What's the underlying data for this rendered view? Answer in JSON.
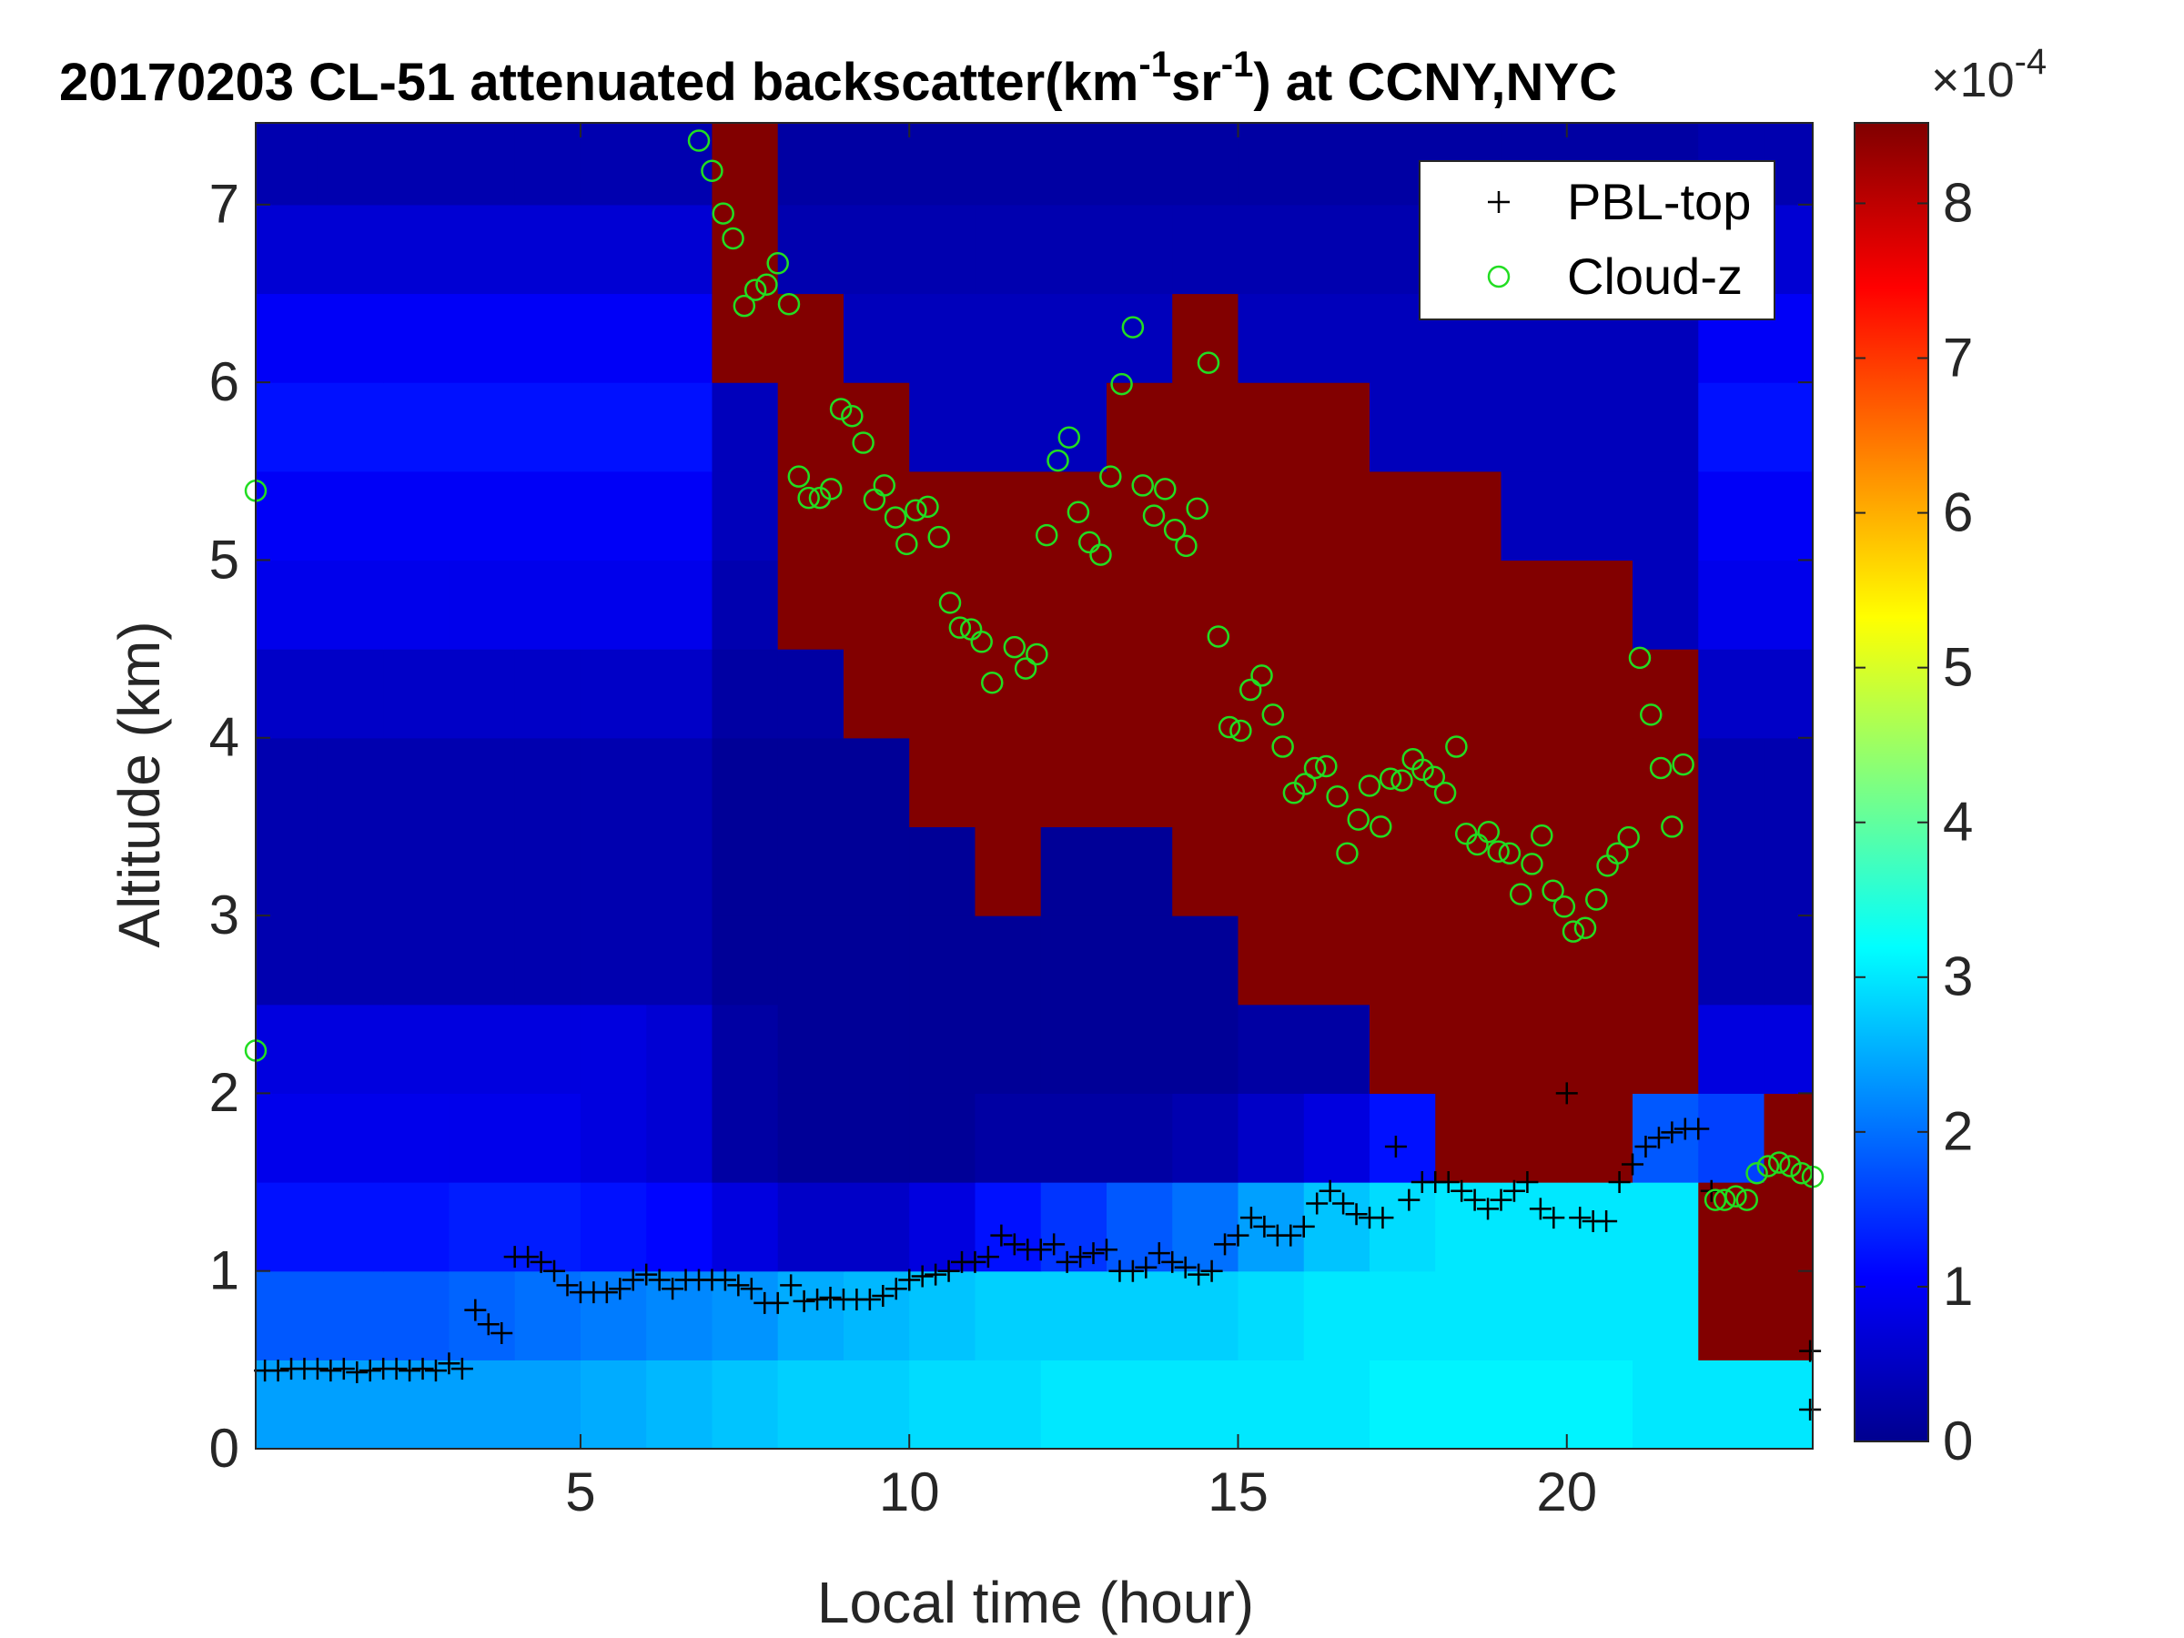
{
  "chart_data": {
    "type": "heatmap",
    "title_parts": [
      "20170203  CL-51 attenuated backscatter(km",
      "-1",
      "sr",
      "-1",
      ") at CCNY,NYC"
    ],
    "xlabel": "Local time (hour)",
    "ylabel": "Altitude (km)",
    "colorbar_label": "×10",
    "colorbar_exponent": "-4",
    "colormap": "jet",
    "clim": [
      0,
      8.52
    ],
    "cticks": [
      0,
      1,
      2,
      3,
      4,
      5,
      6,
      7,
      8
    ],
    "xlim": [
      0.06,
      23.74
    ],
    "ylim": [
      0,
      7.46
    ],
    "xticks": [
      5,
      10,
      15,
      20
    ],
    "yticks": [
      0,
      1,
      2,
      3,
      4,
      5,
      6,
      7
    ],
    "legend": "upper right",
    "xbins": [
      0.06,
      1,
      2,
      3,
      4,
      5,
      6,
      7,
      8,
      9,
      10,
      11,
      12,
      13,
      14,
      15,
      16,
      17,
      18,
      19,
      20,
      21,
      22,
      23,
      23.74
    ],
    "ybins": [
      0,
      0.5,
      1,
      1.5,
      2,
      2.5,
      3,
      3.5,
      4,
      4.5,
      5,
      5.5,
      6,
      6.5,
      7,
      7.46
    ],
    "z": [
      [
        2.4,
        2.4,
        2.4,
        2.4,
        2.4,
        2.5,
        2.6,
        2.7,
        2.8,
        2.8,
        2.9,
        2.9,
        3,
        3,
        3,
        3,
        3,
        3.1,
        3.1,
        3.1,
        3.1,
        3,
        3,
        3
      ],
      [
        1.8,
        1.8,
        1.8,
        1.9,
        2,
        2.1,
        2.2,
        2.3,
        2.5,
        2.6,
        2.7,
        2.8,
        2.8,
        2.8,
        2.8,
        2.9,
        3,
        3,
        3,
        3,
        3,
        3,
        8.5,
        8.5
      ],
      [
        1.2,
        1.2,
        1.2,
        1.3,
        1.3,
        1.2,
        1.1,
        0.8,
        0.6,
        0.6,
        0.8,
        1.2,
        1.5,
        1.8,
        2,
        2.4,
        2.7,
        2.9,
        3,
        3,
        3,
        3,
        8.5,
        8.5
      ],
      [
        0.9,
        0.9,
        0.9,
        0.9,
        0.9,
        0.8,
        0.7,
        0.3,
        0.2,
        0.2,
        0.2,
        0.3,
        0.3,
        0.3,
        0.4,
        0.6,
        0.8,
        1.2,
        8.5,
        8.5,
        8.5,
        1.8,
        1.6,
        8.5
      ],
      [
        0.8,
        0.8,
        0.8,
        0.8,
        0.8,
        0.8,
        0.7,
        0.3,
        0.2,
        0.2,
        0.2,
        0.2,
        0.2,
        0.2,
        0.2,
        0.3,
        0.3,
        8.5,
        8.5,
        8.5,
        8.5,
        8.5,
        0.8,
        0.8
      ],
      [
        0.4,
        0.4,
        0.4,
        0.4,
        0.4,
        0.4,
        0.4,
        0.2,
        0.2,
        0.2,
        0.2,
        0.2,
        0.2,
        0.2,
        0.2,
        8.5,
        8.5,
        8.5,
        8.5,
        8.5,
        8.5,
        8.5,
        0.4,
        0.4
      ],
      [
        0.4,
        0.4,
        0.4,
        0.4,
        0.4,
        0.4,
        0.4,
        0.2,
        0.2,
        0.2,
        0.2,
        8.5,
        0.2,
        0.2,
        8.5,
        8.5,
        8.5,
        8.5,
        8.5,
        8.5,
        8.5,
        8.5,
        0.4,
        0.4
      ],
      [
        0.4,
        0.4,
        0.4,
        0.4,
        0.4,
        0.4,
        0.4,
        0.2,
        0.2,
        0.2,
        8.5,
        8.5,
        8.5,
        8.5,
        8.5,
        8.5,
        8.5,
        8.5,
        8.5,
        8.5,
        8.5,
        8.5,
        0.4,
        0.4
      ],
      [
        0.6,
        0.6,
        0.6,
        0.6,
        0.6,
        0.6,
        0.6,
        0.3,
        0.3,
        8.5,
        8.5,
        8.5,
        8.5,
        8.5,
        8.5,
        8.5,
        8.5,
        8.5,
        8.5,
        8.5,
        8.5,
        8.5,
        0.6,
        0.6
      ],
      [
        0.9,
        0.9,
        0.9,
        0.9,
        0.9,
        0.9,
        0.9,
        0.4,
        8.5,
        8.5,
        8.5,
        8.5,
        8.5,
        8.5,
        8.5,
        8.5,
        8.5,
        8.5,
        8.5,
        8.5,
        8.5,
        0.5,
        0.9,
        0.9
      ],
      [
        1,
        1,
        1,
        1,
        1,
        1,
        1,
        0.5,
        8.5,
        8.5,
        8.5,
        8.5,
        8.5,
        8.5,
        8.5,
        8.5,
        8.5,
        8.5,
        8.5,
        0.5,
        0.5,
        0.5,
        1,
        1
      ],
      [
        1.2,
        1.2,
        1.2,
        1.2,
        1.2,
        1.2,
        1.2,
        0.5,
        8.5,
        8.5,
        0.5,
        0.5,
        0.5,
        8.5,
        8.5,
        8.5,
        8.5,
        0.5,
        0.5,
        0.5,
        0.5,
        0.5,
        1.2,
        1.2
      ],
      [
        1,
        1,
        1,
        1,
        1,
        1,
        1,
        8.5,
        8.5,
        0.5,
        0.5,
        0.5,
        0.5,
        0.5,
        8.5,
        0.5,
        0.5,
        0.5,
        0.5,
        0.5,
        0.5,
        0.5,
        1,
        1
      ],
      [
        0.7,
        0.7,
        0.7,
        0.7,
        0.7,
        0.7,
        0.7,
        8.5,
        0.4,
        0.4,
        0.4,
        0.4,
        0.4,
        0.4,
        0.4,
        0.4,
        0.4,
        0.4,
        0.4,
        0.4,
        0.4,
        0.4,
        0.7,
        0.7
      ],
      [
        0.4,
        0.4,
        0.4,
        0.4,
        0.4,
        0.4,
        0.4,
        8.5,
        0.3,
        0.3,
        0.3,
        0.3,
        0.3,
        0.3,
        0.3,
        0.3,
        0.3,
        0.3,
        0.3,
        0.3,
        0.3,
        0.3,
        0.4,
        0.4
      ]
    ],
    "series": [
      {
        "name": "PBL-top",
        "marker": "plus",
        "color": "#000000",
        "x": [
          0.2,
          0.4,
          0.6,
          0.8,
          1.0,
          1.2,
          1.4,
          1.6,
          1.8,
          2.0,
          2.2,
          2.4,
          2.6,
          2.8,
          3.0,
          3.2,
          3.4,
          3.6,
          3.8,
          4.0,
          4.2,
          4.4,
          4.6,
          4.8,
          5.0,
          5.2,
          5.4,
          5.6,
          5.8,
          6.0,
          6.2,
          6.4,
          6.6,
          6.8,
          7.0,
          7.2,
          7.4,
          7.6,
          7.8,
          8.0,
          8.2,
          8.4,
          8.6,
          8.8,
          9.0,
          9.2,
          9.4,
          9.6,
          9.8,
          10,
          10.2,
          10.4,
          10.6,
          10.8,
          11,
          11.2,
          11.4,
          11.6,
          11.8,
          12,
          12.2,
          12.4,
          12.6,
          12.8,
          13,
          13.2,
          13.4,
          13.6,
          13.8,
          14,
          14.2,
          14.4,
          14.6,
          14.8,
          15,
          15.2,
          15.4,
          15.6,
          15.8,
          16,
          16.2,
          16.4,
          16.6,
          16.8,
          17,
          17.2,
          17.4,
          17.6,
          17.8,
          18,
          18.2,
          18.4,
          18.6,
          18.8,
          19,
          19.2,
          19.4,
          19.6,
          19.8,
          20,
          20.2,
          20.4,
          20.6,
          20.8,
          21,
          21.2,
          21.4,
          21.6,
          21.8,
          22,
          22.2,
          23.7,
          23.7
        ],
        "y": [
          0.44,
          0.44,
          0.45,
          0.45,
          0.45,
          0.44,
          0.45,
          0.43,
          0.44,
          0.45,
          0.45,
          0.44,
          0.45,
          0.44,
          0.48,
          0.45,
          0.78,
          0.7,
          0.65,
          1.08,
          1.08,
          1.05,
          1.0,
          0.92,
          0.88,
          0.88,
          0.88,
          0.9,
          0.95,
          0.98,
          0.95,
          0.9,
          0.95,
          0.95,
          0.95,
          0.95,
          0.92,
          0.9,
          0.82,
          0.82,
          0.92,
          0.83,
          0.84,
          0.85,
          0.84,
          0.84,
          0.84,
          0.86,
          0.9,
          0.95,
          0.97,
          0.98,
          1.0,
          1.05,
          1.05,
          1.08,
          1.2,
          1.15,
          1.12,
          1.12,
          1.15,
          1.05,
          1.08,
          1.1,
          1.12,
          1.0,
          1.0,
          1.02,
          1.1,
          1.05,
          1.02,
          0.98,
          1.0,
          1.15,
          1.2,
          1.3,
          1.25,
          1.2,
          1.2,
          1.25,
          1.38,
          1.45,
          1.38,
          1.32,
          1.3,
          1.3,
          1.7,
          1.4,
          1.5,
          1.5,
          1.5,
          1.45,
          1.4,
          1.35,
          1.4,
          1.45,
          1.5,
          1.35,
          1.3,
          2.0,
          1.3,
          1.28,
          1.28,
          1.5,
          1.6,
          1.7,
          1.75,
          1.78,
          1.8,
          1.8,
          1.45,
          0.55,
          0.22
        ]
      },
      {
        "name": "Cloud-z",
        "marker": "circle",
        "color": "#22dd22",
        "x": [
          0.06,
          0.06,
          6.8,
          7.0,
          7.17,
          7.32,
          7.49,
          7.66,
          7.83,
          8.0,
          8.17,
          8.32,
          8.47,
          8.64,
          8.81,
          8.96,
          9.13,
          9.3,
          9.47,
          9.62,
          9.79,
          9.96,
          10.1,
          10.28,
          10.45,
          10.62,
          10.77,
          10.94,
          11.1,
          11.26,
          11.6,
          11.77,
          11.94,
          12.09,
          12.26,
          12.43,
          12.57,
          12.74,
          12.91,
          13.06,
          13.23,
          13.4,
          13.55,
          13.72,
          13.89,
          14.04,
          14.21,
          14.38,
          14.55,
          14.7,
          14.87,
          15.04,
          15.19,
          15.36,
          15.53,
          15.68,
          15.85,
          16.02,
          16.17,
          16.34,
          16.51,
          16.66,
          16.83,
          17.0,
          17.17,
          17.32,
          17.49,
          17.66,
          17.81,
          17.98,
          18.15,
          18.32,
          18.47,
          18.64,
          18.81,
          18.96,
          19.13,
          19.3,
          19.47,
          19.62,
          19.79,
          19.96,
          20.1,
          20.28,
          20.45,
          20.62,
          20.77,
          20.94,
          21.11,
          21.28,
          21.43,
          21.6,
          21.77,
          22.26,
          22.4,
          22.57,
          22.74,
          22.89,
          23.06,
          23.23,
          23.4,
          23.57,
          23.74
        ],
        "y": [
          5.39,
          2.24,
          7.36,
          7.19,
          6.95,
          6.81,
          6.43,
          6.52,
          6.55,
          6.67,
          6.44,
          5.47,
          5.35,
          5.35,
          5.4,
          5.85,
          5.81,
          5.66,
          5.34,
          5.42,
          5.24,
          5.09,
          5.28,
          5.3,
          5.13,
          4.76,
          4.62,
          4.61,
          4.54,
          4.31,
          4.51,
          4.39,
          4.47,
          5.14,
          5.56,
          5.69,
          5.27,
          5.1,
          5.03,
          5.47,
          5.99,
          6.31,
          5.42,
          5.25,
          5.4,
          5.17,
          5.08,
          5.29,
          6.11,
          4.57,
          4.06,
          4.04,
          4.27,
          4.35,
          4.13,
          3.95,
          3.69,
          3.74,
          3.83,
          3.84,
          3.67,
          3.35,
          3.54,
          3.73,
          3.5,
          3.77,
          3.76,
          3.88,
          3.82,
          3.78,
          3.69,
          3.95,
          3.46,
          3.4,
          3.47,
          3.36,
          3.35,
          3.12,
          3.29,
          3.45,
          3.14,
          3.05,
          2.91,
          2.93,
          3.09,
          3.28,
          3.35,
          3.44,
          4.45,
          4.13,
          3.83,
          3.5,
          3.85,
          1.4,
          1.4,
          1.42,
          1.4,
          1.55,
          1.59,
          1.61,
          1.59,
          1.55,
          1.53
        ]
      }
    ]
  }
}
